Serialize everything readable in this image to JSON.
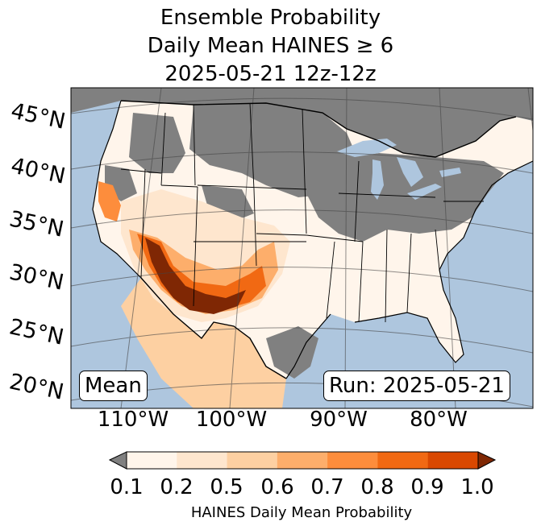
{
  "title": {
    "line1": "Ensemble Probability",
    "line2": "Daily Mean HAINES ≥ 6",
    "line3": "2025-05-21 12z-12z"
  },
  "map": {
    "lat_labels": [
      "45°N",
      "40°N",
      "35°N",
      "30°N",
      "25°N",
      "20°N"
    ],
    "lon_labels": [
      "110°W",
      "100°W",
      "90°W",
      "80°W"
    ],
    "statistic_label": "Mean",
    "run_label": "Run: 2025-05-21",
    "colors": {
      "ocean": "#aec6de",
      "no_data": "#808080",
      "land_low": "#ffffff"
    }
  },
  "colorbar": {
    "label": "HAINES Daily Mean Probability",
    "ticks": [
      "0.1",
      "0.2",
      "0.5",
      "0.6",
      "0.7",
      "0.8",
      "0.9",
      "1.0"
    ],
    "under_color": "#808080",
    "over_color": "#7f2704",
    "bins": [
      "#fff5eb",
      "#fee6ce",
      "#fdd0a2",
      "#fdae6b",
      "#fd8d3c",
      "#f16913",
      "#d94801"
    ]
  }
}
